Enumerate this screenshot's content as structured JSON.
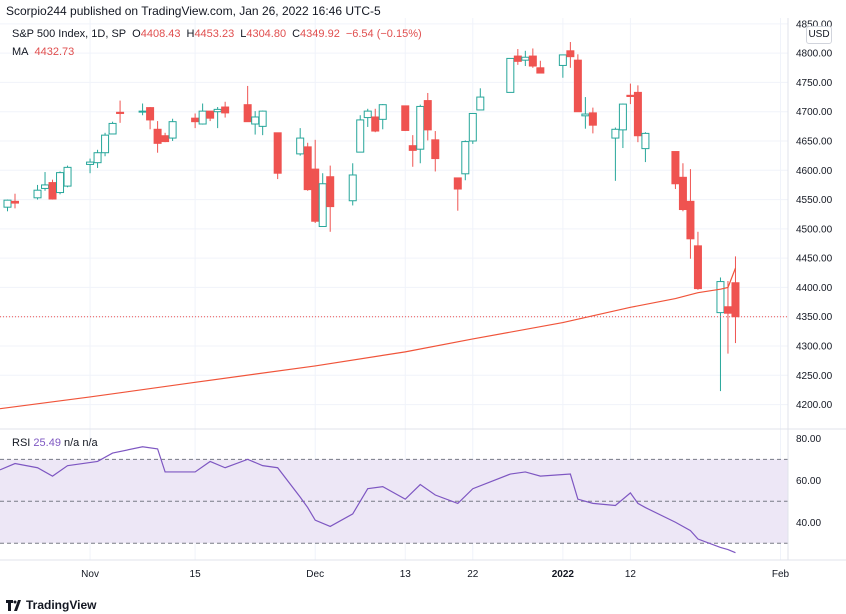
{
  "header": "Scorpio244 published on TradingView.com, Jan 26, 2022 16:46 UTC-5",
  "legend": {
    "symbol": "S&P 500 Index, 1D, SP",
    "open_label": "O",
    "open": "4408.43",
    "high_label": "H",
    "high": "4453.23",
    "low_label": "L",
    "low": "4304.80",
    "close_label": "C",
    "close": "4349.92",
    "change": "−6.54 (−0.15%)",
    "ma_label": "MA",
    "ma_value": "4432.73",
    "rsi_label": "RSI",
    "rsi_value": "25.49",
    "rsi_na1": "n/a",
    "rsi_na2": "n/a"
  },
  "currency_button": "USD",
  "footer_brand": "TradingView",
  "colors": {
    "up": "#26a69a",
    "down": "#ef5350",
    "ma": "#f0543a",
    "rsi": "#7e57c2",
    "rsi_band": "#ede7f6"
  },
  "chart_data": [
    {
      "type": "candlestick",
      "title": "S&P 500 Index, 1D, SP",
      "ylim": [
        4160,
        4860
      ],
      "y_ticks": [
        "4850.00",
        "4800.00",
        "4750.00",
        "4700.00",
        "4650.00",
        "4600.00",
        "4550.00",
        "4500.00",
        "4450.00",
        "4400.00",
        "4350.00",
        "4300.00",
        "4250.00",
        "4200.00"
      ],
      "x_ticks": [
        {
          "label": "Nov",
          "date": "2021-11-01"
        },
        {
          "label": "15",
          "date": "2021-11-15"
        },
        {
          "label": "Dec",
          "date": "2021-12-01"
        },
        {
          "label": "13",
          "date": "2021-12-13"
        },
        {
          "label": "22",
          "date": "2021-12-22"
        },
        {
          "label": "2022",
          "date": "2022-01-03"
        },
        {
          "label": "12",
          "date": "2022-01-12"
        },
        {
          "label": "Feb",
          "date": "2022-02-01"
        }
      ],
      "x_range": [
        "2021-10-20",
        "2022-02-02"
      ],
      "last_close": 4349.92,
      "candles": [
        [
          "2021-10-21",
          4537,
          4550,
          4530,
          4549
        ],
        [
          "2021-10-22",
          4547,
          4560,
          4535,
          4544
        ],
        [
          "2021-10-25",
          4553,
          4575,
          4550,
          4566
        ],
        [
          "2021-10-26",
          4569,
          4597,
          4565,
          4575
        ],
        [
          "2021-10-27",
          4579,
          4584,
          4550,
          4551
        ],
        [
          "2021-10-28",
          4562,
          4598,
          4559,
          4596
        ],
        [
          "2021-10-29",
          4573,
          4608,
          4571,
          4605
        ],
        [
          "2021-11-01",
          4610,
          4620,
          4595,
          4614
        ],
        [
          "2021-11-02",
          4613,
          4635,
          4604,
          4630
        ],
        [
          "2021-11-03",
          4630,
          4664,
          4624,
          4660
        ],
        [
          "2021-11-04",
          4662,
          4683,
          4662,
          4680
        ],
        [
          "2021-11-05",
          4699,
          4719,
          4681,
          4697
        ],
        [
          "2021-11-08",
          4701,
          4714,
          4694,
          4701
        ],
        [
          "2021-11-09",
          4707,
          4708,
          4670,
          4686
        ],
        [
          "2021-11-10",
          4670,
          4684,
          4630,
          4646
        ],
        [
          "2021-11-11",
          4659,
          4664,
          4648,
          4649
        ],
        [
          "2021-11-12",
          4655,
          4688,
          4650,
          4683
        ],
        [
          "2021-11-15",
          4689,
          4697,
          4672,
          4683
        ],
        [
          "2021-11-16",
          4679,
          4714,
          4678,
          4701
        ],
        [
          "2021-11-17",
          4701,
          4701,
          4684,
          4689
        ],
        [
          "2021-11-18",
          4700,
          4708,
          4672,
          4704
        ],
        [
          "2021-11-19",
          4708,
          4717,
          4690,
          4698
        ],
        [
          "2021-11-22",
          4712,
          4744,
          4683,
          4683
        ],
        [
          "2021-11-23",
          4679,
          4701,
          4661,
          4691
        ],
        [
          "2021-11-24",
          4675,
          4702,
          4660,
          4701
        ],
        [
          "2021-11-26",
          4664,
          4664,
          4585,
          4595
        ],
        [
          "2021-11-29",
          4628,
          4672,
          4625,
          4655
        ],
        [
          "2021-11-30",
          4640,
          4647,
          4565,
          4567
        ],
        [
          "2021-12-01",
          4602,
          4652,
          4510,
          4513
        ],
        [
          "2021-12-02",
          4504,
          4595,
          4504,
          4577
        ],
        [
          "2021-12-03",
          4589,
          4608,
          4495,
          4538
        ],
        [
          "2021-12-06",
          4548,
          4612,
          4540,
          4592
        ],
        [
          "2021-12-07",
          4631,
          4694,
          4631,
          4686
        ],
        [
          "2021-12-08",
          4690,
          4705,
          4674,
          4701
        ],
        [
          "2021-12-09",
          4691,
          4705,
          4665,
          4667
        ],
        [
          "2021-12-10",
          4687,
          4713,
          4670,
          4712
        ],
        [
          "2021-12-13",
          4710,
          4710,
          4667,
          4668
        ],
        [
          "2021-12-14",
          4642,
          4660,
          4606,
          4634
        ],
        [
          "2021-12-15",
          4636,
          4712,
          4612,
          4709
        ],
        [
          "2021-12-16",
          4719,
          4732,
          4651,
          4669
        ],
        [
          "2021-12-17",
          4652,
          4667,
          4598,
          4620
        ],
        [
          "2021-12-20",
          4587,
          4587,
          4531,
          4568
        ],
        [
          "2021-12-21",
          4594,
          4651,
          4583,
          4649
        ],
        [
          "2021-12-22",
          4650,
          4697,
          4645,
          4697
        ],
        [
          "2021-12-23",
          4703,
          4740,
          4703,
          4725
        ],
        [
          "2021-12-27",
          4733,
          4791,
          4733,
          4791
        ],
        [
          "2021-12-28",
          4795,
          4807,
          4780,
          4786
        ],
        [
          "2021-12-29",
          4788,
          4804,
          4778,
          4793
        ],
        [
          "2021-12-30",
          4795,
          4808,
          4775,
          4778
        ],
        [
          "2021-12-31",
          4775,
          4787,
          4767,
          4766
        ],
        [
          "2022-01-03",
          4779,
          4797,
          4758,
          4797
        ],
        [
          "2022-01-04",
          4804,
          4819,
          4775,
          4794
        ],
        [
          "2022-01-05",
          4788,
          4798,
          4700,
          4700
        ],
        [
          "2022-01-06",
          4693,
          4725,
          4671,
          4696
        ],
        [
          "2022-01-07",
          4698,
          4707,
          4663,
          4677
        ],
        [
          "2022-01-10",
          4655,
          4673,
          4582,
          4670
        ],
        [
          "2022-01-11",
          4669,
          4714,
          4638,
          4713
        ],
        [
          "2022-01-12",
          4728,
          4748,
          4713,
          4726
        ],
        [
          "2022-01-13",
          4733,
          4745,
          4648,
          4659
        ],
        [
          "2022-01-14",
          4637,
          4665,
          4614,
          4663
        ],
        [
          "2022-01-18",
          4632,
          4632,
          4568,
          4577
        ],
        [
          "2022-01-19",
          4588,
          4612,
          4530,
          4533
        ],
        [
          "2022-01-20",
          4547,
          4602,
          4449,
          4483
        ],
        [
          "2022-01-21",
          4471,
          4495,
          4396,
          4398
        ],
        [
          "2022-01-24",
          4357,
          4417,
          4223,
          4410
        ],
        [
          "2022-01-25",
          4367,
          4411,
          4287,
          4356
        ],
        [
          "2022-01-26",
          4408,
          4453,
          4305,
          4350
        ]
      ],
      "ma_series": [
        [
          "2021-10-20",
          4193
        ],
        [
          "2021-11-01",
          4213
        ],
        [
          "2021-11-15",
          4238
        ],
        [
          "2021-12-01",
          4266
        ],
        [
          "2021-12-13",
          4290
        ],
        [
          "2021-12-22",
          4312
        ],
        [
          "2022-01-03",
          4340
        ],
        [
          "2022-01-12",
          4366
        ],
        [
          "2022-01-18",
          4381
        ],
        [
          "2022-01-21",
          4391
        ],
        [
          "2022-01-24",
          4397
        ],
        [
          "2022-01-25",
          4400
        ],
        [
          "2022-01-26",
          4433
        ]
      ]
    },
    {
      "type": "line",
      "title": "RSI",
      "ylim": [
        22,
        84
      ],
      "y_ticks": [
        "80.00",
        "60.00",
        "40.00"
      ],
      "bands": [
        30,
        50,
        70
      ],
      "series": [
        {
          "values": [
            [
              "2021-10-20",
              65
            ],
            [
              "2021-10-22",
              68
            ],
            [
              "2021-10-25",
              66
            ],
            [
              "2021-10-27",
              62
            ],
            [
              "2021-10-29",
              67
            ],
            [
              "2021-11-02",
              69
            ],
            [
              "2021-11-04",
              73
            ],
            [
              "2021-11-08",
              76
            ],
            [
              "2021-11-10",
              75
            ],
            [
              "2021-11-11",
              64
            ],
            [
              "2021-11-15",
              64
            ],
            [
              "2021-11-17",
              69
            ],
            [
              "2021-11-19",
              66
            ],
            [
              "2021-11-22",
              70
            ],
            [
              "2021-11-24",
              67
            ],
            [
              "2021-11-26",
              66
            ],
            [
              "2021-11-29",
              52
            ],
            [
              "2021-11-30",
              47
            ],
            [
              "2021-12-01",
              41
            ],
            [
              "2021-12-03",
              38
            ],
            [
              "2021-12-06",
              44
            ],
            [
              "2021-12-08",
              56
            ],
            [
              "2021-12-10",
              57
            ],
            [
              "2021-12-13",
              51
            ],
            [
              "2021-12-15",
              58
            ],
            [
              "2021-12-17",
              53
            ],
            [
              "2021-12-20",
              49
            ],
            [
              "2021-12-22",
              56
            ],
            [
              "2021-12-27",
              63
            ],
            [
              "2021-12-29",
              64
            ],
            [
              "2021-12-31",
              62
            ],
            [
              "2022-01-04",
              63
            ],
            [
              "2022-01-05",
              51
            ],
            [
              "2022-01-07",
              49
            ],
            [
              "2022-01-10",
              48
            ],
            [
              "2022-01-12",
              54
            ],
            [
              "2022-01-13",
              49
            ],
            [
              "2022-01-14",
              47
            ],
            [
              "2022-01-18",
              40
            ],
            [
              "2022-01-20",
              36
            ],
            [
              "2022-01-21",
              32
            ],
            [
              "2022-01-24",
              28
            ],
            [
              "2022-01-25",
              27
            ],
            [
              "2022-01-26",
              25.49
            ]
          ]
        }
      ]
    }
  ]
}
